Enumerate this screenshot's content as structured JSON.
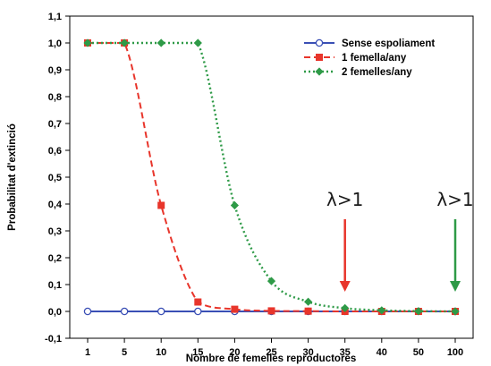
{
  "chart_data": {
    "type": "line",
    "title": "",
    "xlabel": "Nombre de femelles reproductores",
    "ylabel": "Probabilitat d'extinció",
    "categories": [
      "1",
      "5",
      "10",
      "15",
      "20",
      "25",
      "30",
      "35",
      "40",
      "50",
      "100"
    ],
    "ylim": [
      -0.1,
      1.1
    ],
    "yticks": [
      "-0,1",
      "0,0",
      "0,1",
      "0,2",
      "0,3",
      "0,4",
      "0,5",
      "0,6",
      "0,7",
      "0,8",
      "0,9",
      "1,0",
      "1,1"
    ],
    "grid": false,
    "legend_position": "top-right",
    "series": [
      {
        "name": "Sense espoliament",
        "color": "#3a4fb5",
        "line_style": "solid",
        "marker": "open-circle",
        "values": [
          0,
          0,
          0,
          0,
          0,
          0,
          0,
          0,
          0,
          0,
          0
        ]
      },
      {
        "name": "1 femella/any",
        "color": "#e8352b",
        "line_style": "dashed",
        "marker": "square",
        "values": [
          1.0,
          1.0,
          0.395,
          0.035,
          0.008,
          0.002,
          0.001,
          0,
          0,
          0,
          0
        ]
      },
      {
        "name": "2 femelles/any",
        "color": "#2e9a47",
        "line_style": "dotted",
        "marker": "diamond",
        "values": [
          1.0,
          1.0,
          1.0,
          1.0,
          0.395,
          0.113,
          0.036,
          0.012,
          0.004,
          0.001,
          0.0
        ]
      }
    ],
    "annotations": [
      {
        "text": "λ>1",
        "category": "35",
        "color": "#e8352b"
      },
      {
        "text": "λ>1",
        "category": "100",
        "color": "#2e9a47"
      }
    ]
  }
}
